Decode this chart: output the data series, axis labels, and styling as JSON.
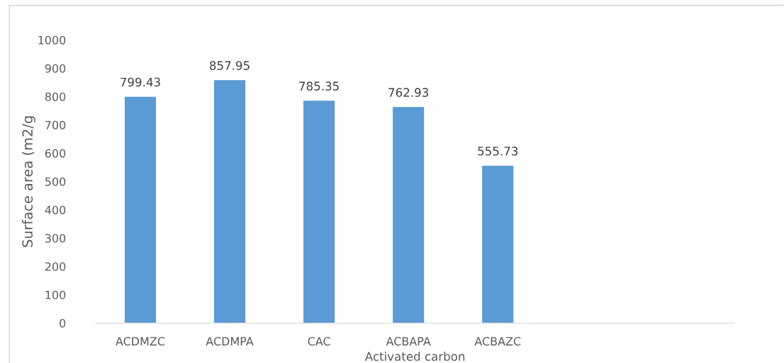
{
  "chart_data": {
    "type": "bar",
    "xlabel": "Activated carbon",
    "ylabel": "Surface area (m2/g",
    "categories": [
      "ACDMZC",
      "ACDMPA",
      "CAC",
      "ACBAPA",
      "ACBAZC",
      null,
      null
    ],
    "values": [
      799.43,
      857.95,
      785.35,
      762.93,
      555.73,
      null,
      null
    ],
    "color": "#5b9bd5",
    "data_labels": true,
    "grid": false,
    "ylim": [
      0,
      1000
    ],
    "yticks": [
      0,
      100,
      200,
      300,
      400,
      500,
      600,
      700,
      800,
      900,
      1000
    ]
  }
}
